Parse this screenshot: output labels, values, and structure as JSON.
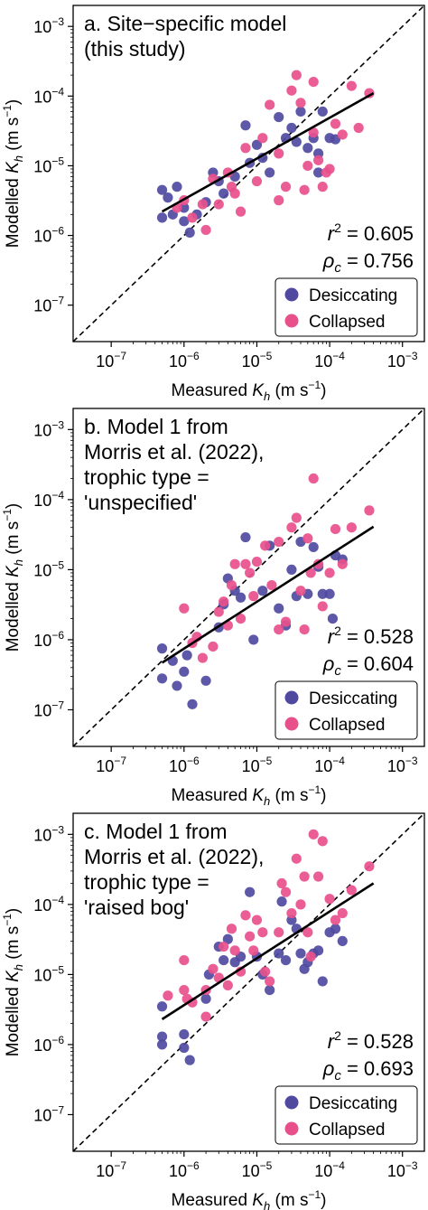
{
  "colors": {
    "desiccating": "#4f4aa0",
    "collapsed": "#e8508c",
    "axis": "#000000"
  },
  "chart_data": [
    {
      "type": "scatter",
      "log_x": true,
      "log_y": true,
      "xlim": [
        3e-08,
        0.002
      ],
      "ylim": [
        3e-08,
        0.002
      ],
      "xticks": [
        "10^-7",
        "10^-6",
        "10^-5",
        "10^-4",
        "10^-3"
      ],
      "yticks": [
        "10^-7",
        "10^-6",
        "10^-5",
        "10^-4",
        "10^-3"
      ],
      "xlabel": "Measured K_h (m s^-1)",
      "ylabel": "Modelled K_h (m s^-1)",
      "title_lines": [
        "a. Site−specific model",
        "(this study)"
      ],
      "r2_text": "= 0.605",
      "rho_text": "= 0.756",
      "legend": {
        "position": "bottom-right",
        "entries": [
          "Desiccating",
          "Collapsed"
        ]
      },
      "one_to_one_line": true,
      "fit_line": {
        "x": [
          5e-07,
          0.0004
        ],
        "y": [
          2.2e-06,
          0.00011
        ]
      },
      "series": [
        {
          "name": "Desiccating",
          "color_key": "desiccating",
          "points": [
            [
              5e-07,
              4.5e-06
            ],
            [
              5e-07,
              1.8e-06
            ],
            [
              6e-07,
              3.5e-06
            ],
            [
              7e-07,
              2e-06
            ],
            [
              8e-07,
              5e-06
            ],
            [
              1e-06,
              2.5e-06
            ],
            [
              1e-06,
              1.6e-06
            ],
            [
              1.2e-06,
              1.1e-06
            ],
            [
              1.5e-06,
              2e-06
            ],
            [
              2e-06,
              3e-06
            ],
            [
              2.5e-06,
              8e-06
            ],
            [
              3e-06,
              6e-06
            ],
            [
              3.5e-06,
              4e-06
            ],
            [
              5e-06,
              7e-06
            ],
            [
              7e-06,
              3.8e-05
            ],
            [
              8e-06,
              1.1e-05
            ],
            [
              1e-05,
              2e-05
            ],
            [
              1.2e-05,
              1.3e-05
            ],
            [
              1.5e-05,
              8e-06
            ],
            [
              2e-05,
              5e-05
            ],
            [
              2.5e-05,
              2.5e-05
            ],
            [
              3e-05,
              3.5e-05
            ],
            [
              3.5e-05,
              2.2e-05
            ],
            [
              4e-05,
              6e-05
            ],
            [
              5e-05,
              1.8e-05
            ],
            [
              6e-05,
              2.5e-05
            ],
            [
              7e-05,
              1.5e-05
            ],
            [
              8e-05,
              6e-05
            ],
            [
              0.0001,
              2.5e-05
            ],
            [
              0.00012,
              2.4e-05
            ],
            [
              7e-05,
              8e-06
            ]
          ]
        },
        {
          "name": "Collapsed",
          "color_key": "collapsed",
          "points": [
            [
              8e-07,
              2.5e-06
            ],
            [
              1e-06,
              3.2e-06
            ],
            [
              1.3e-06,
              1.8e-06
            ],
            [
              1.8e-06,
              2.8e-06
            ],
            [
              2e-06,
              1.2e-06
            ],
            [
              2.5e-06,
              6.5e-06
            ],
            [
              3e-06,
              2.8e-06
            ],
            [
              4e-06,
              8e-06
            ],
            [
              4.5e-06,
              5e-06
            ],
            [
              5e-06,
              4e-06
            ],
            [
              6e-06,
              2.2e-06
            ],
            [
              7e-06,
              1.8e-05
            ],
            [
              1e-05,
              6e-06
            ],
            [
              1.2e-05,
              2.5e-05
            ],
            [
              1.5e-05,
              7.5e-05
            ],
            [
              2e-05,
              1.5e-05
            ],
            [
              2e-05,
              3.2e-06
            ],
            [
              2.5e-05,
              5e-06
            ],
            [
              3e-05,
              0.00012
            ],
            [
              3.5e-05,
              0.0002
            ],
            [
              4e-05,
              8e-05
            ],
            [
              4.5e-05,
              4.5e-06
            ],
            [
              5e-05,
              1e-05
            ],
            [
              6e-05,
              3e-05
            ],
            [
              6e-05,
              0.00016
            ],
            [
              7e-05,
              1.2e-05
            ],
            [
              8e-05,
              5e-06
            ],
            [
              9e-05,
              8e-06
            ],
            [
              0.0001,
              9e-06
            ],
            [
              0.00012,
              4e-05
            ],
            [
              0.00015,
              2.8e-05
            ],
            [
              0.0002,
              0.00014
            ],
            [
              0.00025,
              3.5e-05
            ],
            [
              0.00035,
              0.00011
            ]
          ]
        }
      ]
    },
    {
      "type": "scatter",
      "log_x": true,
      "log_y": true,
      "xlim": [
        3e-08,
        0.002
      ],
      "ylim": [
        3e-08,
        0.002
      ],
      "xticks": [
        "10^-7",
        "10^-6",
        "10^-5",
        "10^-4",
        "10^-3"
      ],
      "yticks": [
        "10^-7",
        "10^-6",
        "10^-5",
        "10^-4",
        "10^-3"
      ],
      "xlabel": "Measured K_h (m s^-1)",
      "ylabel": "Modelled K_h (m s^-1)",
      "title_lines": [
        "b. Model 1 from",
        "Morris et al. (2022),",
        "trophic type =",
        "'unspecified'"
      ],
      "r2_text": "= 0.528",
      "rho_text": "= 0.604",
      "legend": {
        "position": "bottom-right",
        "entries": [
          "Desiccating",
          "Collapsed"
        ]
      },
      "one_to_one_line": true,
      "fit_line": {
        "x": [
          5e-07,
          0.0004
        ],
        "y": [
          4.7e-07,
          4.1e-05
        ]
      },
      "series": [
        {
          "name": "Desiccating",
          "color_key": "desiccating",
          "points": [
            [
              5e-07,
              7.5e-07
            ],
            [
              5e-07,
              2.8e-07
            ],
            [
              7e-07,
              5e-07
            ],
            [
              8e-07,
              2.2e-07
            ],
            [
              1e-06,
              3.5e-07
            ],
            [
              1.1e-06,
              6e-07
            ],
            [
              1.3e-06,
              1.2e-07
            ],
            [
              2e-06,
              2.6e-07
            ],
            [
              3e-06,
              1.5e-06
            ],
            [
              3.5e-06,
              3.2e-06
            ],
            [
              4e-06,
              7.5e-06
            ],
            [
              5e-06,
              5e-06
            ],
            [
              6e-06,
              4e-06
            ],
            [
              7e-06,
              2.9e-05
            ],
            [
              9e-06,
              1e-06
            ],
            [
              1.2e-05,
              5e-06
            ],
            [
              1.5e-05,
              2.2e-05
            ],
            [
              2e-05,
              2.8e-06
            ],
            [
              2.5e-05,
              1.6e-06
            ],
            [
              3e-05,
              1e-05
            ],
            [
              3.5e-05,
              4.2e-06
            ],
            [
              4e-05,
              2.5e-05
            ],
            [
              5e-05,
              4.5e-06
            ],
            [
              6e-05,
              2.1e-05
            ],
            [
              7e-05,
              1.1e-05
            ],
            [
              8e-05,
              4.5e-06
            ],
            [
              0.0001,
              4.5e-06
            ],
            [
              0.00011,
              2e-06
            ],
            [
              0.00012,
              1.6e-05
            ],
            [
              0.00015,
              1.4e-05
            ]
          ]
        },
        {
          "name": "Collapsed",
          "color_key": "collapsed",
          "points": [
            [
              1e-06,
              2.8e-06
            ],
            [
              1.3e-06,
              9e-07
            ],
            [
              1.5e-06,
              1.1e-06
            ],
            [
              1.8e-06,
              5.5e-07
            ],
            [
              2.5e-06,
              8e-07
            ],
            [
              3e-06,
              2.5e-06
            ],
            [
              3.5e-06,
              3.5e-06
            ],
            [
              4e-06,
              1.6e-06
            ],
            [
              4.5e-06,
              6e-06
            ],
            [
              5e-06,
              1.2e-05
            ],
            [
              6e-06,
              2e-06
            ],
            [
              7e-06,
              1.2e-05
            ],
            [
              8e-06,
              9e-06
            ],
            [
              9e-06,
              4.2e-06
            ],
            [
              1e-05,
              1.3e-05
            ],
            [
              1.3e-05,
              2.2e-05
            ],
            [
              1.6e-05,
              6e-06
            ],
            [
              2e-05,
              1.4e-06
            ],
            [
              2e-05,
              2.5e-05
            ],
            [
              2.5e-05,
              1.8e-06
            ],
            [
              3e-05,
              4e-05
            ],
            [
              3.5e-05,
              5.5e-05
            ],
            [
              4e-05,
              5e-06
            ],
            [
              4.5e-05,
              1.4e-06
            ],
            [
              5e-05,
              2.8e-05
            ],
            [
              5.5e-05,
              9e-06
            ],
            [
              6e-05,
              0.0002
            ],
            [
              7e-05,
              1.2e-05
            ],
            [
              8e-05,
              3e-06
            ],
            [
              0.0001,
              9e-06
            ],
            [
              0.00012,
              3.8e-05
            ],
            [
              0.00015,
              1.2e-05
            ],
            [
              0.0002,
              4e-05
            ],
            [
              0.00035,
              7e-05
            ]
          ]
        }
      ]
    },
    {
      "type": "scatter",
      "log_x": true,
      "log_y": true,
      "xlim": [
        3e-08,
        0.002
      ],
      "ylim": [
        3e-08,
        0.002
      ],
      "xticks": [
        "10^-7",
        "10^-6",
        "10^-5",
        "10^-4",
        "10^-3"
      ],
      "yticks": [
        "10^-7",
        "10^-6",
        "10^-5",
        "10^-4",
        "10^-3"
      ],
      "xlabel": "Measured K_h (m s^-1)",
      "ylabel": "Modelled K_h (m s^-1)",
      "title_lines": [
        "c. Model 1 from",
        "Morris et al. (2022),",
        "trophic type =",
        "'raised bog'"
      ],
      "r2_text": "= 0.528",
      "rho_text": "= 0.693",
      "legend": {
        "position": "bottom-right",
        "entries": [
          "Desiccating",
          "Collapsed"
        ]
      },
      "one_to_one_line": true,
      "fit_line": {
        "x": [
          5e-07,
          0.0004
        ],
        "y": [
          2.3e-06,
          0.0002
        ]
      },
      "series": [
        {
          "name": "Desiccating",
          "color_key": "desiccating",
          "points": [
            [
              5e-07,
              1.3e-06
            ],
            [
              5e-07,
              1e-06
            ],
            [
              5e-07,
              3.5e-06
            ],
            [
              1e-06,
              1.4e-06
            ],
            [
              1e-06,
              9e-07
            ],
            [
              1.2e-06,
              6e-07
            ],
            [
              2e-06,
              4.5e-06
            ],
            [
              2.2e-06,
              1e-05
            ],
            [
              3e-06,
              2.5e-05
            ],
            [
              3.5e-06,
              1.6e-05
            ],
            [
              4e-06,
              3.2e-05
            ],
            [
              5e-06,
              1.5e-05
            ],
            [
              6e-06,
              1.8e-05
            ],
            [
              8e-06,
              0.00015
            ],
            [
              1e-05,
              1.8e-05
            ],
            [
              1.2e-05,
              1e-05
            ],
            [
              1.5e-05,
              6e-06
            ],
            [
              2e-05,
              2e-05
            ],
            [
              2.2e-05,
              0.00011
            ],
            [
              2.5e-05,
              1.6e-05
            ],
            [
              3e-05,
              6e-05
            ],
            [
              3.5e-05,
              4.5e-05
            ],
            [
              4e-05,
              2e-05
            ],
            [
              4.5e-05,
              1.2e-05
            ],
            [
              5e-05,
              1.5e-05
            ],
            [
              6e-05,
              2e-05
            ],
            [
              7e-05,
              2.2e-05
            ],
            [
              8e-05,
              8e-06
            ],
            [
              0.0001,
              4e-05
            ],
            [
              0.00012,
              4.5e-05
            ],
            [
              0.00015,
              3e-05
            ]
          ]
        },
        {
          "name": "Collapsed",
          "color_key": "collapsed",
          "points": [
            [
              6e-07,
              5e-06
            ],
            [
              1e-06,
              6e-06
            ],
            [
              1e-06,
              1.6e-05
            ],
            [
              1.1e-06,
              4.5e-06
            ],
            [
              1.3e-06,
              4e-06
            ],
            [
              2e-06,
              2.5e-06
            ],
            [
              2e-06,
              6e-06
            ],
            [
              2.5e-06,
              1.2e-05
            ],
            [
              3e-06,
              9e-06
            ],
            [
              3.5e-06,
              2.5e-05
            ],
            [
              4e-06,
              7e-06
            ],
            [
              4.5e-06,
              4.5e-05
            ],
            [
              5e-06,
              2.2e-05
            ],
            [
              6e-06,
              1.1e-05
            ],
            [
              7e-06,
              7e-05
            ],
            [
              8e-06,
              3.5e-05
            ],
            [
              9e-06,
              2.2e-05
            ],
            [
              1e-05,
              6e-05
            ],
            [
              1.2e-05,
              4e-05
            ],
            [
              1.3e-05,
              1.1e-05
            ],
            [
              1.5e-05,
              8e-06
            ],
            [
              2e-05,
              4e-05
            ],
            [
              2.2e-05,
              0.0002
            ],
            [
              2.5e-05,
              0.00015
            ],
            [
              3e-05,
              7.5e-05
            ],
            [
              3.5e-05,
              0.00045
            ],
            [
              4e-05,
              0.0001
            ],
            [
              4.5e-05,
              0.00025
            ],
            [
              5e-05,
              4e-05
            ],
            [
              5.5e-05,
              1.8e-05
            ],
            [
              6e-05,
              0.001
            ],
            [
              7e-05,
              0.00025
            ],
            [
              8e-05,
              0.0008
            ],
            [
              0.0001,
              0.00012
            ],
            [
              0.00012,
              6e-05
            ],
            [
              0.00015,
              7.5e-05
            ],
            [
              0.0002,
              0.00016
            ],
            [
              0.00035,
              0.00035
            ]
          ]
        }
      ]
    }
  ]
}
